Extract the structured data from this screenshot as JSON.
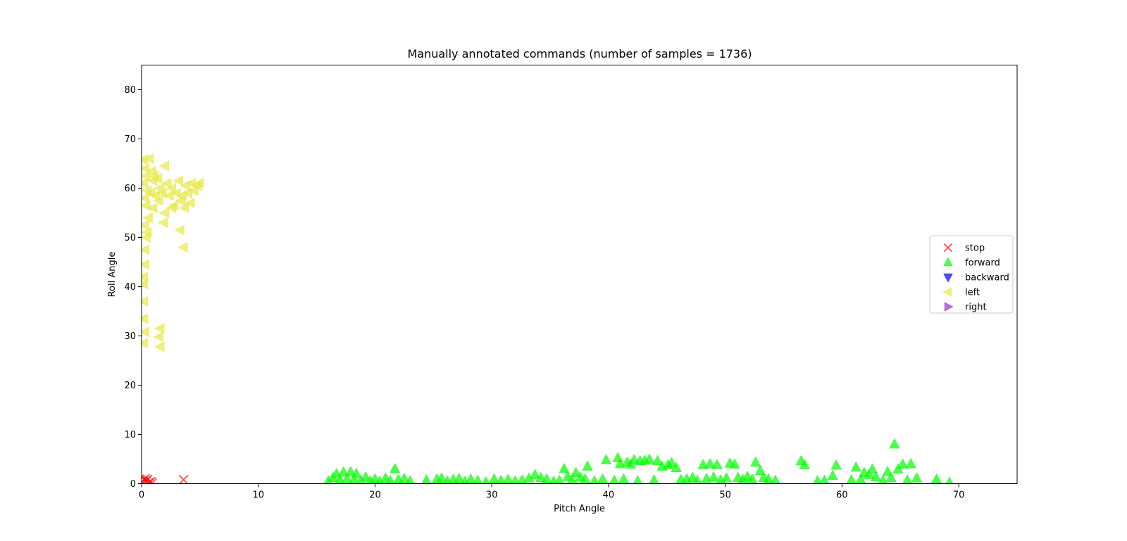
{
  "chart_data": {
    "type": "scatter",
    "title": "Manually annotated commands (number of samples = 1736)",
    "xlabel": "Pitch Angle",
    "ylabel": "Roll Angle",
    "xlim": [
      0,
      75
    ],
    "ylim": [
      0,
      85
    ],
    "xticks": [
      "0",
      "10",
      "20",
      "30",
      "40",
      "50",
      "60",
      "70"
    ],
    "yticks": [
      "0",
      "10",
      "20",
      "30",
      "40",
      "50",
      "60",
      "70",
      "80"
    ],
    "grid": false,
    "legend_position": "center-right",
    "series": [
      {
        "name": "stop",
        "marker": "x",
        "color": "#ff0000",
        "points": [
          [
            0.1,
            0.3
          ],
          [
            0.2,
            0.8
          ],
          [
            0.3,
            1.0
          ],
          [
            0.4,
            0.5
          ],
          [
            0.5,
            0.9
          ],
          [
            0.6,
            0.2
          ],
          [
            0.8,
            0.4
          ],
          [
            0.9,
            0.1
          ],
          [
            3.6,
            0.8
          ]
        ]
      },
      {
        "name": "forward",
        "marker": "triangle-up",
        "color": "#00ff00",
        "points": [
          [
            16.0,
            0.5
          ],
          [
            16.4,
            1.2
          ],
          [
            16.7,
            2.0
          ],
          [
            17.0,
            0.7
          ],
          [
            17.3,
            2.3
          ],
          [
            17.6,
            1.0
          ],
          [
            17.9,
            2.4
          ],
          [
            18.2,
            0.8
          ],
          [
            18.4,
            2.0
          ],
          [
            18.8,
            0.6
          ],
          [
            19.2,
            1.3
          ],
          [
            19.6,
            0.5
          ],
          [
            20.0,
            0.9
          ],
          [
            20.4,
            0.4
          ],
          [
            20.9,
            1.1
          ],
          [
            21.3,
            0.6
          ],
          [
            21.7,
            3.0
          ],
          [
            22.0,
            0.8
          ],
          [
            22.5,
            1.0
          ],
          [
            23.0,
            0.5
          ],
          [
            24.4,
            0.7
          ],
          [
            25.3,
            0.9
          ],
          [
            25.7,
            1.1
          ],
          [
            26.2,
            0.5
          ],
          [
            26.7,
            0.8
          ],
          [
            27.2,
            1.0
          ],
          [
            27.7,
            0.4
          ],
          [
            28.2,
            0.9
          ],
          [
            28.8,
            0.6
          ],
          [
            29.5,
            0.3
          ],
          [
            30.2,
            0.9
          ],
          [
            30.8,
            0.6
          ],
          [
            31.4,
            0.8
          ],
          [
            32.0,
            0.5
          ],
          [
            32.6,
            0.7
          ],
          [
            33.2,
            1.1
          ],
          [
            33.7,
            1.8
          ],
          [
            34.2,
            1.2
          ],
          [
            34.7,
            0.9
          ],
          [
            35.3,
            0.4
          ],
          [
            35.8,
            0.6
          ],
          [
            36.2,
            3.0
          ],
          [
            36.5,
            1.4
          ],
          [
            36.9,
            0.8
          ],
          [
            37.2,
            2.2
          ],
          [
            37.6,
            1.3
          ],
          [
            38.0,
            0.9
          ],
          [
            38.2,
            3.5
          ],
          [
            38.8,
            0.5
          ],
          [
            39.5,
            0.9
          ],
          [
            39.8,
            4.8
          ],
          [
            40.5,
            0.6
          ],
          [
            40.8,
            5.2
          ],
          [
            41.0,
            4.0
          ],
          [
            41.3,
            0.9
          ],
          [
            41.6,
            4.3
          ],
          [
            41.9,
            3.9
          ],
          [
            42.2,
            4.8
          ],
          [
            42.5,
            0.5
          ],
          [
            42.7,
            4.6
          ],
          [
            43.1,
            4.7
          ],
          [
            43.5,
            4.9
          ],
          [
            43.9,
            0.7
          ],
          [
            44.2,
            4.6
          ],
          [
            44.6,
            3.5
          ],
          [
            45.1,
            3.8
          ],
          [
            45.4,
            4.2
          ],
          [
            45.8,
            3.2
          ],
          [
            46.2,
            0.8
          ],
          [
            46.7,
            0.9
          ],
          [
            47.2,
            1.2
          ],
          [
            47.6,
            0.6
          ],
          [
            48.1,
            3.8
          ],
          [
            48.4,
            1.0
          ],
          [
            48.7,
            4.0
          ],
          [
            49.0,
            1.3
          ],
          [
            49.3,
            3.8
          ],
          [
            49.6,
            0.7
          ],
          [
            50.1,
            1.1
          ],
          [
            50.4,
            4.1
          ],
          [
            50.8,
            3.9
          ],
          [
            51.1,
            1.2
          ],
          [
            51.5,
            0.8
          ],
          [
            51.9,
            1.4
          ],
          [
            52.3,
            0.9
          ],
          [
            52.6,
            4.3
          ],
          [
            53.0,
            2.6
          ],
          [
            53.3,
            1.2
          ],
          [
            53.7,
            0.9
          ],
          [
            54.3,
            0.6
          ],
          [
            56.5,
            4.6
          ],
          [
            56.8,
            3.8
          ],
          [
            57.9,
            0.5
          ],
          [
            58.5,
            0.6
          ],
          [
            59.2,
            1.6
          ],
          [
            59.5,
            3.7
          ],
          [
            60.8,
            0.7
          ],
          [
            61.2,
            3.3
          ],
          [
            61.6,
            0.8
          ],
          [
            61.9,
            2.2
          ],
          [
            62.3,
            1.8
          ],
          [
            62.6,
            2.9
          ],
          [
            62.9,
            1.3
          ],
          [
            63.5,
            0.6
          ],
          [
            63.9,
            2.4
          ],
          [
            64.2,
            1.2
          ],
          [
            64.5,
            8.0
          ],
          [
            64.8,
            2.9
          ],
          [
            65.2,
            3.9
          ],
          [
            65.6,
            0.7
          ],
          [
            65.9,
            4.0
          ],
          [
            66.4,
            1.1
          ],
          [
            68.1,
            0.9
          ],
          [
            69.2,
            0.2
          ]
        ]
      },
      {
        "name": "backward",
        "marker": "triangle-down",
        "color": "#0000ff",
        "points": []
      },
      {
        "name": "left",
        "marker": "triangle-left",
        "color": "#e8e84a",
        "points": [
          [
            0.2,
            28.5
          ],
          [
            0.3,
            30.8
          ],
          [
            0.2,
            33.5
          ],
          [
            0.2,
            37.0
          ],
          [
            0.2,
            40.5
          ],
          [
            0.2,
            42.0
          ],
          [
            0.3,
            44.5
          ],
          [
            0.3,
            47.5
          ],
          [
            0.4,
            50.0
          ],
          [
            0.5,
            51.0
          ],
          [
            0.3,
            52.5
          ],
          [
            0.6,
            54.0
          ],
          [
            0.4,
            56.5
          ],
          [
            0.3,
            58.0
          ],
          [
            0.5,
            59.5
          ],
          [
            0.2,
            61.0
          ],
          [
            0.4,
            62.5
          ],
          [
            0.3,
            64.0
          ],
          [
            0.2,
            65.8
          ],
          [
            0.7,
            66.0
          ],
          [
            0.9,
            63.5
          ],
          [
            1.0,
            61.5
          ],
          [
            1.2,
            58.5
          ],
          [
            1.0,
            56.0
          ],
          [
            1.4,
            62.0
          ],
          [
            1.6,
            60.0
          ],
          [
            1.5,
            57.5
          ],
          [
            1.8,
            59.0
          ],
          [
            1.6,
            31.5
          ],
          [
            1.5,
            29.8
          ],
          [
            1.6,
            27.8
          ],
          [
            1.9,
            53.0
          ],
          [
            2.0,
            55.0
          ],
          [
            2.0,
            64.5
          ],
          [
            2.2,
            61.0
          ],
          [
            2.4,
            58.5
          ],
          [
            2.6,
            60.0
          ],
          [
            2.8,
            56.5
          ],
          [
            3.0,
            59.0
          ],
          [
            3.2,
            61.5
          ],
          [
            3.4,
            57.5
          ],
          [
            3.3,
            51.5
          ],
          [
            3.6,
            48.0
          ],
          [
            3.5,
            58.5
          ],
          [
            3.7,
            56.0
          ],
          [
            3.8,
            60.5
          ],
          [
            4.0,
            59.0
          ],
          [
            4.2,
            57.0
          ],
          [
            4.3,
            61.0
          ],
          [
            4.5,
            59.5
          ],
          [
            4.8,
            60.5
          ],
          [
            5.0,
            61.0
          ],
          [
            2.6,
            56.0
          ],
          [
            0.8,
            59.0
          ],
          [
            1.1,
            62.5
          ]
        ]
      },
      {
        "name": "right",
        "marker": "triangle-right",
        "color": "#9932cc",
        "points": []
      }
    ]
  }
}
